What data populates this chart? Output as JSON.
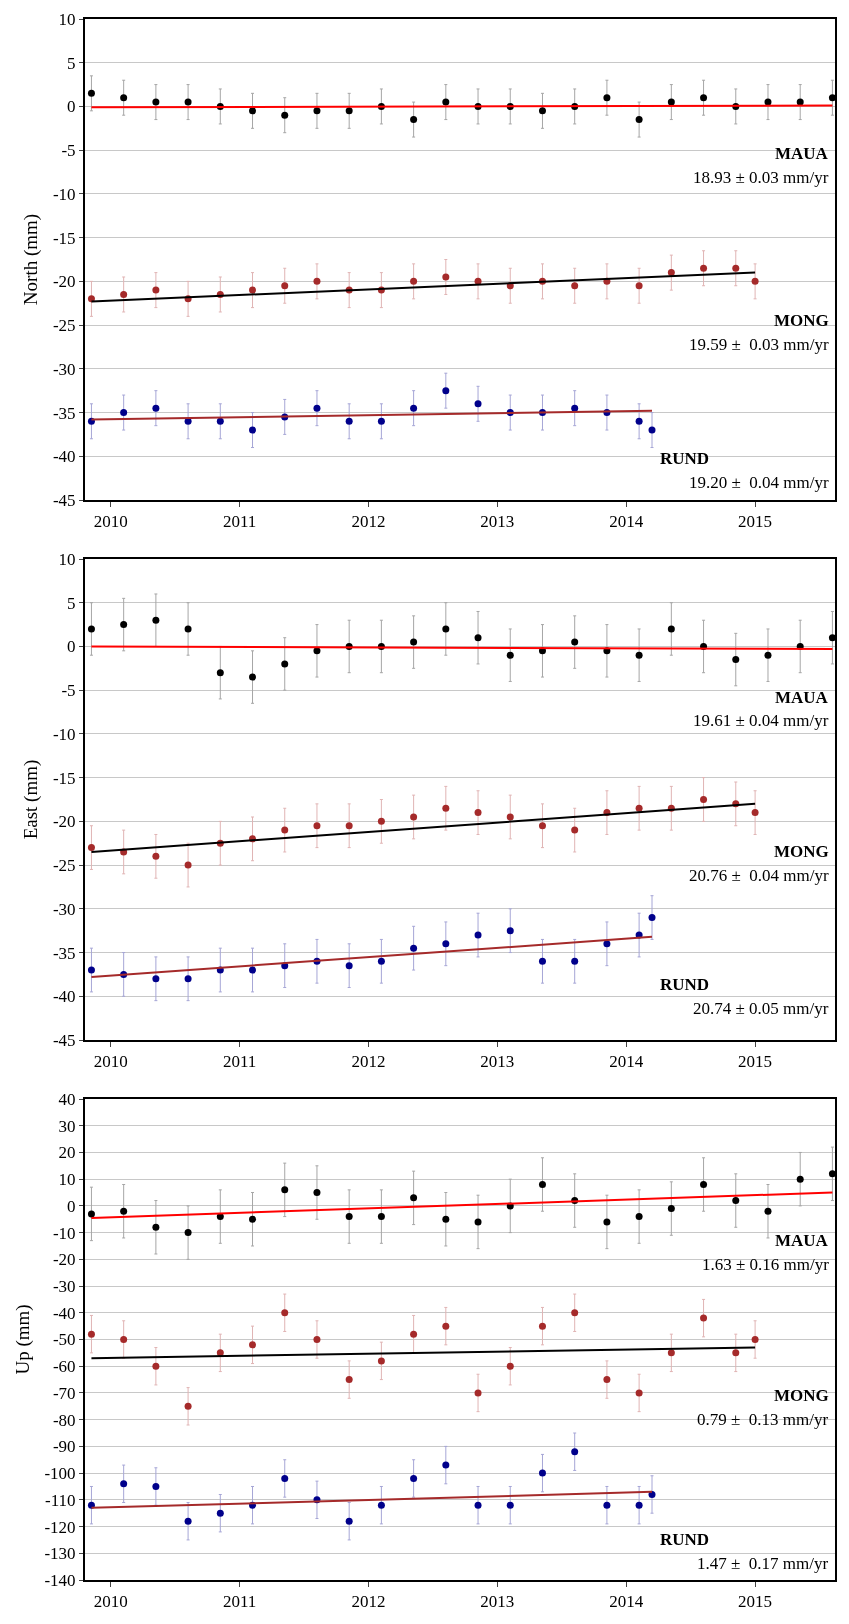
{
  "chart_data": [
    {
      "type": "scatter",
      "ylabel": "North (mm)",
      "xlim": [
        2009.8,
        2015.62
      ],
      "xticks": [
        2010,
        2011,
        2012,
        2013,
        2014,
        2015
      ],
      "ylim": [
        -45,
        10
      ],
      "yticks": [
        -45,
        -40,
        -35,
        -30,
        -25,
        -20,
        -15,
        -10,
        -5,
        0,
        5,
        10
      ],
      "grid": "y",
      "legend": false,
      "marker": "circle",
      "annotations": [
        "18.93 ± 0.03 mm/yr",
        "19.59 ±  0.03 mm/yr",
        "19.20 ±  0.04 mm/yr"
      ],
      "series": [
        {
          "name": "MAUA",
          "color": "#000000",
          "x": [
            2009.85,
            2010.1,
            2010.35,
            2010.6,
            2010.85,
            2011.1,
            2011.35,
            2011.6,
            2011.85,
            2012.1,
            2012.35,
            2012.6,
            2012.85,
            2013.1,
            2013.35,
            2013.6,
            2013.85,
            2014.1,
            2014.35,
            2014.6,
            2014.85,
            2015.1,
            2015.35,
            2015.6
          ],
          "values": [
            1.5,
            1,
            0.5,
            0.5,
            0,
            -0.5,
            -1,
            -0.5,
            -0.5,
            0,
            -1.5,
            0.5,
            0,
            0,
            -0.5,
            0,
            1,
            -1.5,
            0.5,
            1,
            0,
            0.5,
            0.5,
            1
          ],
          "errors": [
            2,
            2,
            2,
            2,
            2,
            2,
            2,
            2,
            2,
            2,
            2,
            2,
            2,
            2,
            2,
            2,
            2,
            2,
            2,
            2,
            2,
            2,
            2,
            2
          ]
        },
        {
          "type": "line",
          "marker": "none",
          "color": "#ff0000",
          "x": [
            2009.85,
            2015.6
          ],
          "values": [
            -0.1,
            0.1
          ]
        },
        {
          "name": "MONG",
          "color": "#a52a2a",
          "x": [
            2009.85,
            2010.1,
            2010.35,
            2010.6,
            2010.85,
            2011.1,
            2011.35,
            2011.6,
            2011.85,
            2012.1,
            2012.35,
            2012.6,
            2012.85,
            2013.1,
            2013.35,
            2013.6,
            2013.85,
            2014.1,
            2014.35,
            2014.6,
            2014.85,
            2015.0
          ],
          "values": [
            -22,
            -21.5,
            -21,
            -22,
            -21.5,
            -21,
            -20.5,
            -20,
            -21,
            -21,
            -20,
            -19.5,
            -20,
            -20.5,
            -20,
            -20.5,
            -20,
            -20.5,
            -19,
            -18.5,
            -18.5,
            -20
          ],
          "errors": [
            2,
            2,
            2,
            2,
            2,
            2,
            2,
            2,
            2,
            2,
            2,
            2,
            2,
            2,
            2,
            2,
            2,
            2,
            2,
            2,
            2,
            2
          ]
        },
        {
          "type": "line",
          "marker": "none",
          "color": "#000000",
          "x": [
            2009.85,
            2015.0
          ],
          "values": [
            -22.3,
            -19
          ]
        },
        {
          "name": "RUND",
          "color": "#00008b",
          "x": [
            2009.85,
            2010.1,
            2010.35,
            2010.6,
            2010.85,
            2011.1,
            2011.35,
            2011.6,
            2011.85,
            2012.1,
            2012.35,
            2012.6,
            2012.85,
            2013.1,
            2013.35,
            2013.6,
            2013.85,
            2014.1,
            2014.2
          ],
          "values": [
            -36,
            -35,
            -34.5,
            -36,
            -36,
            -37,
            -35.5,
            -34.5,
            -36,
            -36,
            -34.5,
            -32.5,
            -34,
            -35,
            -35,
            -34.5,
            -35,
            -36,
            -37
          ],
          "errors": [
            2,
            2,
            2,
            2,
            2,
            2,
            2,
            2,
            2,
            2,
            2,
            2,
            2,
            2,
            2,
            2,
            2,
            2,
            2
          ]
        },
        {
          "type": "line",
          "marker": "none",
          "color": "#a52a2a",
          "x": [
            2009.85,
            2014.2
          ],
          "values": [
            -35.8,
            -34.8
          ]
        }
      ]
    },
    {
      "type": "scatter",
      "ylabel": "East (mm)",
      "xlim": [
        2009.8,
        2015.62
      ],
      "xticks": [
        2010,
        2011,
        2012,
        2013,
        2014,
        2015
      ],
      "ylim": [
        -45,
        10
      ],
      "yticks": [
        -45,
        -40,
        -35,
        -30,
        -25,
        -20,
        -15,
        -10,
        -5,
        0,
        5,
        10
      ],
      "grid": "y",
      "legend": false,
      "marker": "circle",
      "annotations": [
        "19.61 ± 0.04 mm/yr",
        "20.76 ±  0.04 mm/yr",
        "20.74 ± 0.05 mm/yr"
      ],
      "series": [
        {
          "name": "MAUA",
          "color": "#000000",
          "x": [
            2009.85,
            2010.1,
            2010.35,
            2010.6,
            2010.85,
            2011.1,
            2011.35,
            2011.6,
            2011.85,
            2012.1,
            2012.35,
            2012.6,
            2012.85,
            2013.1,
            2013.35,
            2013.6,
            2013.85,
            2014.1,
            2014.35,
            2014.6,
            2014.85,
            2015.1,
            2015.35,
            2015.6
          ],
          "values": [
            2,
            2.5,
            3,
            2,
            -3,
            -3.5,
            -2,
            -0.5,
            0,
            0,
            0.5,
            2,
            1,
            -1,
            -0.5,
            0.5,
            -0.5,
            -1,
            2,
            0,
            -1.5,
            -1,
            0,
            1
          ],
          "errors": [
            3,
            3,
            3,
            3,
            3,
            3,
            3,
            3,
            3,
            3,
            3,
            3,
            3,
            3,
            3,
            3,
            3,
            3,
            3,
            3,
            3,
            3,
            3,
            3
          ]
        },
        {
          "type": "line",
          "marker": "none",
          "color": "#ff0000",
          "x": [
            2009.85,
            2015.6
          ],
          "values": [
            0,
            -0.3
          ]
        },
        {
          "name": "MONG",
          "color": "#a52a2a",
          "x": [
            2009.85,
            2010.1,
            2010.35,
            2010.6,
            2010.85,
            2011.1,
            2011.35,
            2011.6,
            2011.85,
            2012.1,
            2012.35,
            2012.6,
            2012.85,
            2013.1,
            2013.35,
            2013.6,
            2013.85,
            2014.1,
            2014.35,
            2014.6,
            2014.85,
            2015.0
          ],
          "values": [
            -23,
            -23.5,
            -24,
            -25,
            -22.5,
            -22,
            -21,
            -20.5,
            -20.5,
            -20,
            -19.5,
            -18.5,
            -19,
            -19.5,
            -20.5,
            -21,
            -19,
            -18.5,
            -18.5,
            -17.5,
            -18,
            -19
          ],
          "errors": [
            2.5,
            2.5,
            2.5,
            2.5,
            2.5,
            2.5,
            2.5,
            2.5,
            2.5,
            2.5,
            2.5,
            2.5,
            2.5,
            2.5,
            2.5,
            2.5,
            2.5,
            2.5,
            2.5,
            2.5,
            2.5,
            2.5
          ]
        },
        {
          "type": "line",
          "marker": "none",
          "color": "#000000",
          "x": [
            2009.85,
            2015.0
          ],
          "values": [
            -23.5,
            -18
          ]
        },
        {
          "name": "RUND",
          "color": "#00008b",
          "x": [
            2009.85,
            2010.1,
            2010.35,
            2010.6,
            2010.85,
            2011.1,
            2011.35,
            2011.6,
            2011.85,
            2012.1,
            2012.35,
            2012.6,
            2012.85,
            2013.1,
            2013.35,
            2013.6,
            2013.85,
            2014.1,
            2014.2
          ],
          "values": [
            -37,
            -37.5,
            -38,
            -38,
            -37,
            -37,
            -36.5,
            -36,
            -36.5,
            -36,
            -34.5,
            -34,
            -33,
            -32.5,
            -36,
            -36,
            -34,
            -33,
            -31
          ],
          "errors": [
            2.5,
            2.5,
            2.5,
            2.5,
            2.5,
            2.5,
            2.5,
            2.5,
            2.5,
            2.5,
            2.5,
            2.5,
            2.5,
            2.5,
            2.5,
            2.5,
            2.5,
            2.5,
            2.5
          ]
        },
        {
          "type": "line",
          "marker": "none",
          "color": "#a52a2a",
          "x": [
            2009.85,
            2014.2
          ],
          "values": [
            -37.8,
            -33.2
          ]
        }
      ]
    },
    {
      "type": "scatter",
      "ylabel": "Up (mm)",
      "xlim": [
        2009.8,
        2015.62
      ],
      "xticks": [
        2010,
        2011,
        2012,
        2013,
        2014,
        2015
      ],
      "ylim": [
        -140,
        40
      ],
      "yticks": [
        -140,
        -130,
        -120,
        -110,
        -100,
        -90,
        -80,
        -70,
        -60,
        -50,
        -40,
        -30,
        -20,
        -10,
        0,
        10,
        20,
        30,
        40
      ],
      "grid": "y",
      "legend": false,
      "marker": "circle",
      "annotations": [
        "1.63 ± 0.16 mm/yr",
        "0.79 ±  0.13 mm/yr",
        "1.47 ±  0.17 mm/yr"
      ],
      "series": [
        {
          "name": "MAUA",
          "color": "#000000",
          "x": [
            2009.85,
            2010.1,
            2010.35,
            2010.6,
            2010.85,
            2011.1,
            2011.35,
            2011.6,
            2011.85,
            2012.1,
            2012.35,
            2012.6,
            2012.85,
            2013.1,
            2013.35,
            2013.6,
            2013.85,
            2014.1,
            2014.35,
            2014.6,
            2014.85,
            2015.1,
            2015.35,
            2015.6
          ],
          "values": [
            -3,
            -2,
            -8,
            -10,
            -4,
            -5,
            6,
            5,
            -4,
            -4,
            3,
            -5,
            -6,
            0,
            8,
            2,
            -6,
            -4,
            -1,
            8,
            2,
            -2,
            10,
            12
          ],
          "errors": [
            10,
            10,
            10,
            10,
            10,
            10,
            10,
            10,
            10,
            10,
            10,
            10,
            10,
            10,
            10,
            10,
            10,
            10,
            10,
            10,
            10,
            10,
            10,
            10
          ]
        },
        {
          "type": "line",
          "marker": "none",
          "color": "#ff0000",
          "x": [
            2009.85,
            2015.6
          ],
          "values": [
            -4.5,
            5
          ]
        },
        {
          "name": "MONG",
          "color": "#a52a2a",
          "x": [
            2009.85,
            2010.1,
            2010.35,
            2010.6,
            2010.85,
            2011.1,
            2011.35,
            2011.6,
            2011.85,
            2012.1,
            2012.35,
            2012.6,
            2012.85,
            2013.1,
            2013.35,
            2013.6,
            2013.85,
            2014.1,
            2014.35,
            2014.6,
            2014.85,
            2015.0
          ],
          "values": [
            -48,
            -50,
            -60,
            -75,
            -55,
            -52,
            -40,
            -50,
            -65,
            -58,
            -48,
            -45,
            -70,
            -60,
            -45,
            -40,
            -65,
            -70,
            -55,
            -42,
            -55,
            -50
          ],
          "errors": [
            7,
            7,
            7,
            7,
            7,
            7,
            7,
            7,
            7,
            7,
            7,
            7,
            7,
            7,
            7,
            7,
            7,
            7,
            7,
            7,
            7,
            7
          ]
        },
        {
          "type": "line",
          "marker": "none",
          "color": "#000000",
          "x": [
            2009.85,
            2015.0
          ],
          "values": [
            -57,
            -53
          ]
        },
        {
          "name": "RUND",
          "color": "#00008b",
          "x": [
            2009.85,
            2010.1,
            2010.35,
            2010.6,
            2010.85,
            2011.1,
            2011.35,
            2011.6,
            2011.85,
            2012.1,
            2012.35,
            2012.6,
            2012.85,
            2013.1,
            2013.35,
            2013.6,
            2013.85,
            2014.1,
            2014.2
          ],
          "values": [
            -112,
            -104,
            -105,
            -118,
            -115,
            -112,
            -102,
            -110,
            -118,
            -112,
            -102,
            -97,
            -112,
            -112,
            -100,
            -92,
            -112,
            -112,
            -108
          ],
          "errors": [
            7,
            7,
            7,
            7,
            7,
            7,
            7,
            7,
            7,
            7,
            7,
            7,
            7,
            7,
            7,
            7,
            7,
            7,
            7
          ]
        },
        {
          "type": "line",
          "marker": "none",
          "color": "#a52a2a",
          "x": [
            2009.85,
            2014.2
          ],
          "values": [
            -113,
            -107
          ]
        }
      ]
    }
  ]
}
